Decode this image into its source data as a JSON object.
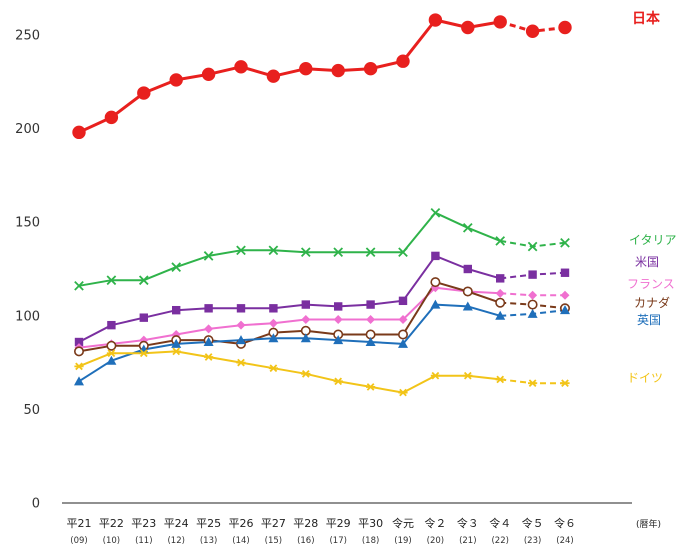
{
  "chart_data": {
    "type": "line",
    "title": "",
    "xlabel": "",
    "ylabel": "",
    "x_unit_label": "(暦年)",
    "categories": [
      {
        "top": "平21",
        "bottom": "(09)"
      },
      {
        "top": "平22",
        "bottom": "(10)"
      },
      {
        "top": "平23",
        "bottom": "(11)"
      },
      {
        "top": "平24",
        "bottom": "(12)"
      },
      {
        "top": "平25",
        "bottom": "(13)"
      },
      {
        "top": "平26",
        "bottom": "(14)"
      },
      {
        "top": "平27",
        "bottom": "(15)"
      },
      {
        "top": "平28",
        "bottom": "(16)"
      },
      {
        "top": "平29",
        "bottom": "(17)"
      },
      {
        "top": "平30",
        "bottom": "(18)"
      },
      {
        "top": "令元",
        "bottom": "(19)"
      },
      {
        "top": "令２",
        "bottom": "(20)"
      },
      {
        "top": "令３",
        "bottom": "(21)"
      },
      {
        "top": "令４",
        "bottom": "(22)"
      },
      {
        "top": "令５",
        "bottom": "(23)"
      },
      {
        "top": "令６",
        "bottom": "(24)"
      }
    ],
    "ylim": [
      0,
      270
    ],
    "yticks": [
      0,
      50,
      100,
      150,
      200,
      250
    ],
    "grid": false,
    "legend": "inline labels at right end of each line",
    "dashed_from_index": 13,
    "series": [
      {
        "name": "日本",
        "color": "#e8201e",
        "marker": "circle-filled",
        "values": [
          198,
          206,
          219,
          226,
          229,
          233,
          228,
          232,
          231,
          232,
          236,
          258,
          254,
          257,
          252,
          254
        ]
      },
      {
        "name": "イタリア",
        "color": "#2fb34a",
        "marker": "x",
        "values": [
          116,
          119,
          119,
          126,
          132,
          135,
          135,
          134,
          134,
          134,
          134,
          155,
          147,
          140,
          137,
          139
        ]
      },
      {
        "name": "米国",
        "color": "#7a2fa0",
        "marker": "square",
        "values": [
          86,
          95,
          99,
          103,
          104,
          104,
          104,
          106,
          105,
          106,
          108,
          132,
          125,
          120,
          122,
          123
        ]
      },
      {
        "name": "フランス",
        "color": "#f070d0",
        "marker": "diamond",
        "values": [
          83,
          85,
          87,
          90,
          93,
          95,
          96,
          98,
          98,
          98,
          98,
          115,
          113,
          112,
          111,
          111
        ]
      },
      {
        "name": "カナダ",
        "color": "#7a3a1a",
        "marker": "circle-open",
        "values": [
          81,
          84,
          84,
          87,
          87,
          85,
          91,
          92,
          90,
          90,
          90,
          118,
          113,
          107,
          106,
          104
        ]
      },
      {
        "name": "英国",
        "color": "#1f6fba",
        "marker": "triangle",
        "values": [
          65,
          76,
          82,
          85,
          86,
          87,
          88,
          88,
          87,
          86,
          85,
          106,
          105,
          100,
          101,
          103
        ]
      },
      {
        "name": "ドイツ",
        "color": "#f2c418",
        "marker": "star",
        "values": [
          73,
          80,
          80,
          81,
          78,
          75,
          72,
          69,
          65,
          62,
          59,
          68,
          68,
          66,
          64,
          64
        ]
      }
    ]
  }
}
